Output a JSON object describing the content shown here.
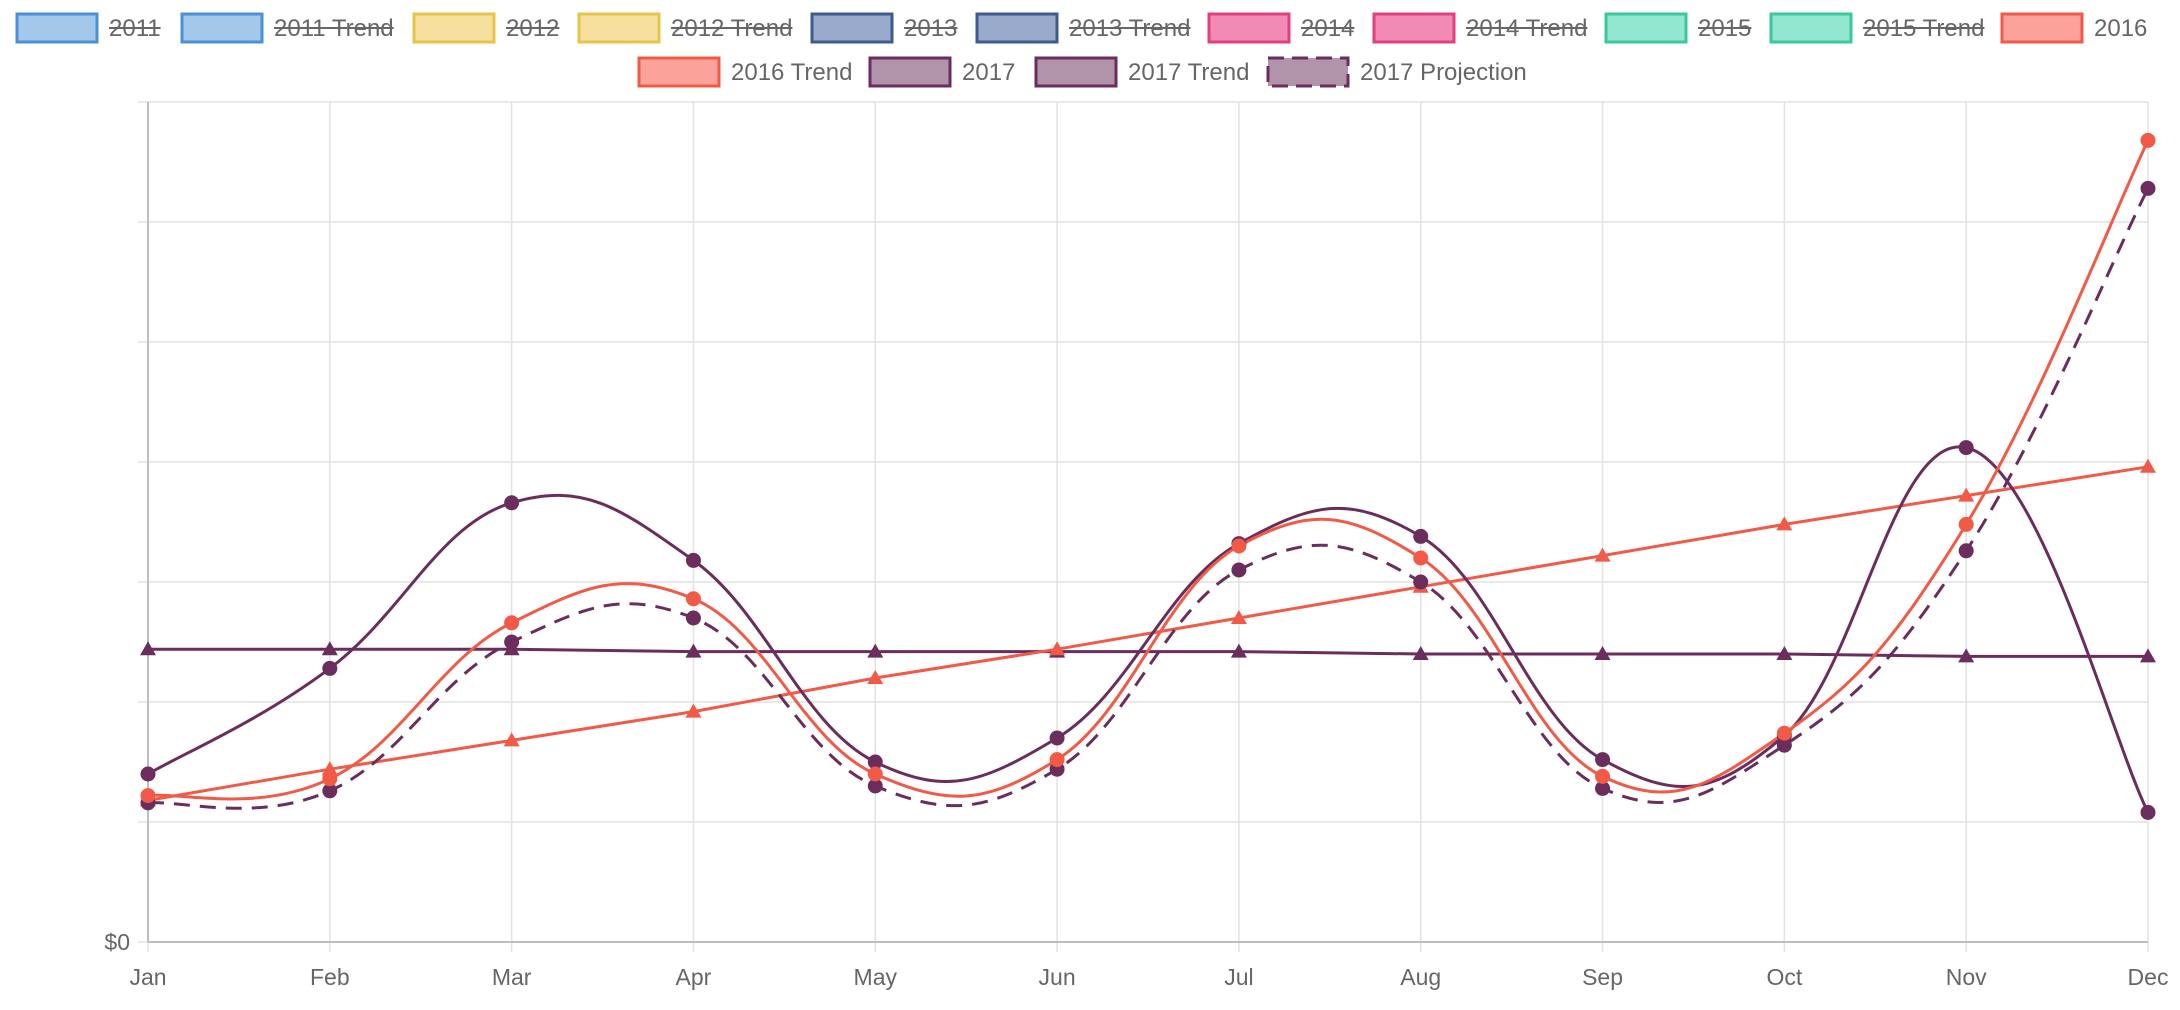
{
  "chart_data": {
    "type": "line",
    "categories": [
      "Jan",
      "Feb",
      "Mar",
      "Apr",
      "May",
      "Jun",
      "Jul",
      "Aug",
      "Sep",
      "Oct",
      "Nov",
      "Dec"
    ],
    "y_tick_labels": [
      {
        "value": 0,
        "label": "$0"
      }
    ],
    "ylim": [
      0,
      350
    ],
    "grid": true,
    "legend_position": "top",
    "legend": [
      {
        "name": "2011",
        "fill": "#a4c8ea",
        "border": "#4a90d9",
        "hidden": true
      },
      {
        "name": "2011 Trend",
        "fill": "#a4c8ea",
        "border": "#4a90d9",
        "hidden": true
      },
      {
        "name": "2012",
        "fill": "#f5e0a0",
        "border": "#e8c44a",
        "hidden": true
      },
      {
        "name": "2012 Trend",
        "fill": "#f5e0a0",
        "border": "#e8c44a",
        "hidden": true
      },
      {
        "name": "2013",
        "fill": "#9aaacb",
        "border": "#3e5b8f",
        "hidden": true
      },
      {
        "name": "2013 Trend",
        "fill": "#9aaacb",
        "border": "#3e5b8f",
        "hidden": true
      },
      {
        "name": "2014",
        "fill": "#f28ab6",
        "border": "#e0407f",
        "hidden": true
      },
      {
        "name": "2014 Trend",
        "fill": "#f28ab6",
        "border": "#e0407f",
        "hidden": true
      },
      {
        "name": "2015",
        "fill": "#93e6cf",
        "border": "#38c89e",
        "hidden": true
      },
      {
        "name": "2015 Trend",
        "fill": "#93e6cf",
        "border": "#38c89e",
        "hidden": true
      },
      {
        "name": "2016",
        "fill": "#fba39a",
        "border": "#f05a47",
        "hidden": false
      },
      {
        "name": "2016 Trend",
        "fill": "#fba39a",
        "border": "#f05a47",
        "hidden": false
      },
      {
        "name": "2017",
        "fill": "#b294aa",
        "border": "#6b2d5c",
        "hidden": false
      },
      {
        "name": "2017 Trend",
        "fill": "#b294aa",
        "border": "#6b2d5c",
        "hidden": false
      },
      {
        "name": "2017 Projection",
        "fill": "#b294aa",
        "border": "#6b2d5c",
        "hidden": false,
        "dashed": true
      }
    ],
    "series": [
      {
        "name": "2016",
        "color": "#f05a47",
        "curved": true,
        "marker": "circle",
        "values": [
          61,
          68,
          133,
          143,
          70,
          76,
          165,
          160,
          69,
          87,
          174,
          334
        ]
      },
      {
        "name": "2016 Trend",
        "color": "#f05a47",
        "curved": false,
        "marker": "triangle",
        "values": [
          59,
          72,
          84,
          96,
          110,
          122,
          135,
          148,
          161,
          174,
          186,
          198
        ]
      },
      {
        "name": "2017",
        "color": "#6b2d5c",
        "curved": true,
        "marker": "circle",
        "values": [
          70,
          114,
          183,
          159,
          75,
          85,
          166,
          169,
          76,
          86,
          206,
          54
        ]
      },
      {
        "name": "2017 Trend",
        "color": "#6b2d5c",
        "curved": false,
        "marker": "triangle",
        "values": [
          122,
          122,
          122,
          121,
          121,
          121,
          121,
          120,
          120,
          120,
          119,
          119
        ]
      },
      {
        "name": "2017 Projection",
        "color": "#6b2d5c",
        "curved": true,
        "marker": "circle",
        "dashed": true,
        "values": [
          58,
          63,
          125,
          135,
          65,
          72,
          155,
          150,
          64,
          82,
          163,
          314
        ]
      }
    ]
  }
}
